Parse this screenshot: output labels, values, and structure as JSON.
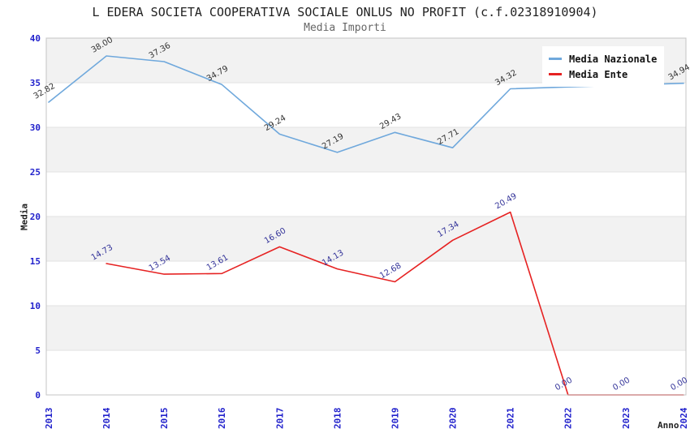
{
  "chart_data": {
    "type": "line",
    "title": "L EDERA SOCIETA COOPERATIVA SOCIALE ONLUS NO PROFIT (c.f.02318910904)",
    "subtitle": "Media Importi",
    "xlabel": "Anno",
    "ylabel": "Media",
    "x": [
      2013,
      2014,
      2015,
      2016,
      2017,
      2018,
      2019,
      2020,
      2021,
      2022,
      2023,
      2024
    ],
    "ylim": [
      0,
      40
    ],
    "ytick_step": 5,
    "grid": "alternating-horizontal-bands",
    "legend_position": "top-right-inside",
    "value_label_decimals": 2,
    "series": [
      {
        "name": "Media Nazionale",
        "color": "#6fa8dc",
        "label_color": "#333333",
        "values": [
          32.82,
          38.0,
          37.36,
          34.79,
          29.24,
          27.19,
          29.43,
          27.71,
          34.32,
          null,
          null,
          34.94
        ]
      },
      {
        "name": "Media Ente",
        "color": "#e62222",
        "label_color": "#333399",
        "values": [
          null,
          14.73,
          13.54,
          13.61,
          16.6,
          14.13,
          12.68,
          17.34,
          20.49,
          0.0,
          0.0,
          0.0
        ]
      }
    ],
    "colors": {
      "tick_label": "#2222cc",
      "band_fill": "#f2f2f2",
      "band_line": "#e2e2e2",
      "frame": "#c4c4c4",
      "title": "#222222",
      "subtitle": "#666666",
      "axis_title": "#222222"
    }
  }
}
